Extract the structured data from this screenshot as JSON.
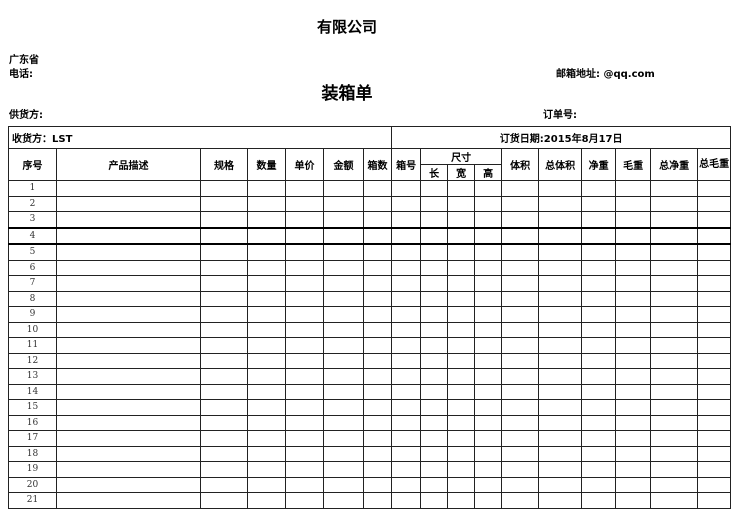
{
  "header": {
    "company": "有限公司",
    "province": "广东省",
    "phone_label": "电话:",
    "email_label": "邮箱地址: @qq.com",
    "title": "装箱单",
    "supplier_label": "供货方:",
    "order_no_label": "订单号:"
  },
  "table": {
    "receiver": "收货方：LST",
    "order_date": "订货日期:2015年8月17日",
    "columns": {
      "seq": "序号",
      "desc": "产品描述",
      "spec": "规格",
      "qty": "数量",
      "price": "单价",
      "amount": "金额",
      "boxes": "箱数",
      "box_no": "箱号",
      "size": "尺寸",
      "length": "长",
      "width": "宽",
      "height": "高",
      "volume": "体积",
      "total_volume": "总体积",
      "net": "净重",
      "gross": "毛重",
      "total_net": "总净重",
      "total_gross": "总毛重"
    },
    "rows": [
      "1",
      "2",
      "3",
      "4",
      "5",
      "6",
      "7",
      "8",
      "9",
      "10",
      "11",
      "12",
      "13",
      "14",
      "15",
      "16",
      "17",
      "18",
      "19",
      "20",
      "21"
    ]
  }
}
